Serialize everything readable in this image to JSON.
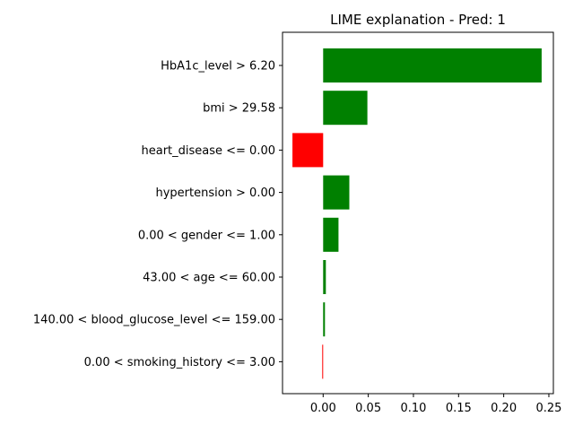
{
  "chart_data": {
    "type": "bar",
    "orientation": "horizontal",
    "title": "LIME explanation - Pred: 1",
    "xlabel": "",
    "ylabel": "",
    "categories": [
      "HbA1c_level > 6.20",
      "bmi > 29.58",
      "heart_disease <= 0.00",
      "hypertension > 0.00",
      "0.00 < gender <= 1.00",
      "43.00 < age <= 60.00",
      "140.00 < blood_glucose_level <= 159.00",
      "0.00 < smoking_history <= 3.00"
    ],
    "values": [
      0.242,
      0.049,
      -0.034,
      0.029,
      0.017,
      0.003,
      0.002,
      -0.001
    ],
    "xlim": [
      -0.045,
      0.255
    ],
    "xticks": [
      0.0,
      0.05,
      0.1,
      0.15,
      0.2,
      0.25
    ],
    "xtick_labels": [
      "0.00",
      "0.05",
      "0.10",
      "0.15",
      "0.20",
      "0.25"
    ],
    "colors": {
      "positive": "#008000",
      "negative": "#ff0000"
    },
    "grid": false,
    "legend": "none"
  }
}
